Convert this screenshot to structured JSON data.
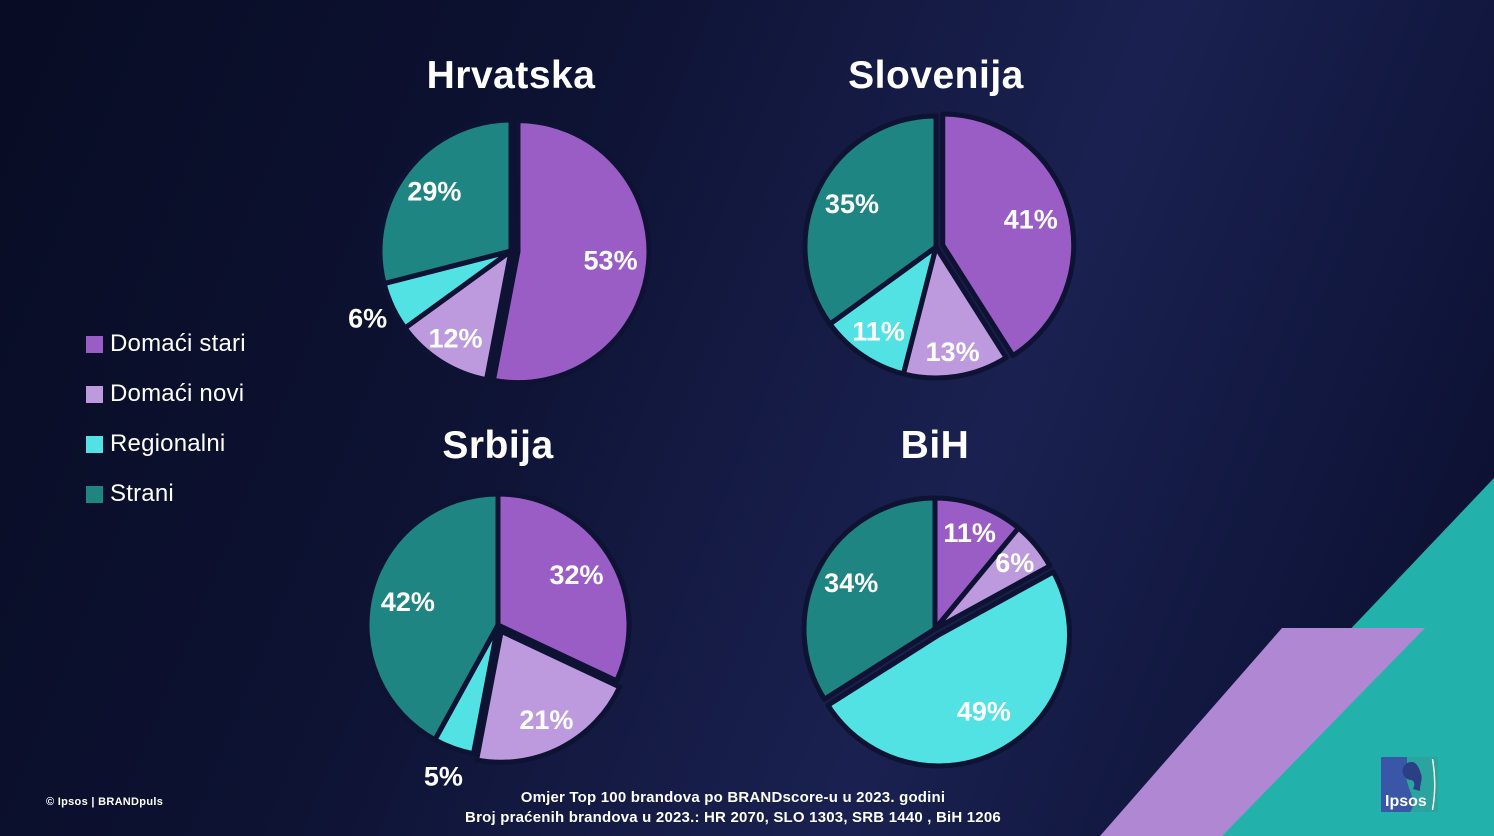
{
  "slide": {
    "background_colors": [
      "#080c24",
      "#0d1232",
      "#1a2150",
      "#0a0e2b"
    ],
    "slice_gap_color": "#0e1233",
    "text_color": "#ffffff"
  },
  "palette": [
    "#9a5dc5",
    "#bd9ade",
    "#52e2e3",
    "#1f8583"
  ],
  "legend": {
    "items": [
      {
        "label": "Domaći stari",
        "color": "#9a5dc5"
      },
      {
        "label": "Domaći novi",
        "color": "#bd9ade"
      },
      {
        "label": "Regionalni",
        "color": "#52e2e3"
      },
      {
        "label": "Strani",
        "color": "#1f8583"
      }
    ]
  },
  "chart_data": [
    {
      "type": "pie",
      "title": "Hrvatska",
      "categories": [
        "Domaći stari",
        "Domaći novi",
        "Regionalni",
        "Strani"
      ],
      "values": [
        53,
        12,
        6,
        29
      ],
      "unit": "%",
      "start_angle_deg": 0,
      "direction": "clockwise",
      "explode_index": 0,
      "label_radius": [
        0.71,
        0.79,
        1.21,
        0.74
      ]
    },
    {
      "type": "pie",
      "title": "Slovenija",
      "categories": [
        "Domaći stari",
        "Domaći novi",
        "Regionalni",
        "Strani"
      ],
      "values": [
        41,
        13,
        11,
        35
      ],
      "unit": "%",
      "start_angle_deg": 0,
      "direction": "clockwise",
      "explode_index": 0,
      "label_radius": [
        0.7,
        0.81,
        0.78,
        0.72
      ]
    },
    {
      "type": "pie",
      "title": "Srbija",
      "categories": [
        "Domaći stari",
        "Domaći novi",
        "Regionalni",
        "Strani"
      ],
      "values": [
        32,
        21,
        5,
        42
      ],
      "unit": "%",
      "start_angle_deg": 0,
      "direction": "clockwise",
      "explode_index": 1,
      "label_radius": [
        0.71,
        0.76,
        1.23,
        0.71
      ]
    },
    {
      "type": "pie",
      "title": "BiH",
      "categories": [
        "Domaći stari",
        "Domaći novi",
        "Regionalni",
        "Strani"
      ],
      "values": [
        11,
        6,
        49,
        34
      ],
      "unit": "%",
      "start_angle_deg": 0,
      "direction": "clockwise",
      "explode_index": 2,
      "label_radius": [
        0.78,
        0.79,
        0.68,
        0.73
      ]
    }
  ],
  "footer": {
    "source_line1": "Omjer Top 100 brandova po BRANDscore-u u 2023. godini",
    "source_line2": "Broj praćenih brandova u 2023.: HR 2070, SLO 1303, SRB 1440 , BiH 1206",
    "copyright": "© Ipsos | BRANDpuls"
  },
  "logo": {
    "text": "Ipsos",
    "box_blue": "#3a57a7",
    "box_teal": "#2ba39f",
    "silhouette_blue": "#2b3f85"
  },
  "decor": {
    "triangle_color": "#23b1ab",
    "parallelogram_color": "#af87d3"
  }
}
